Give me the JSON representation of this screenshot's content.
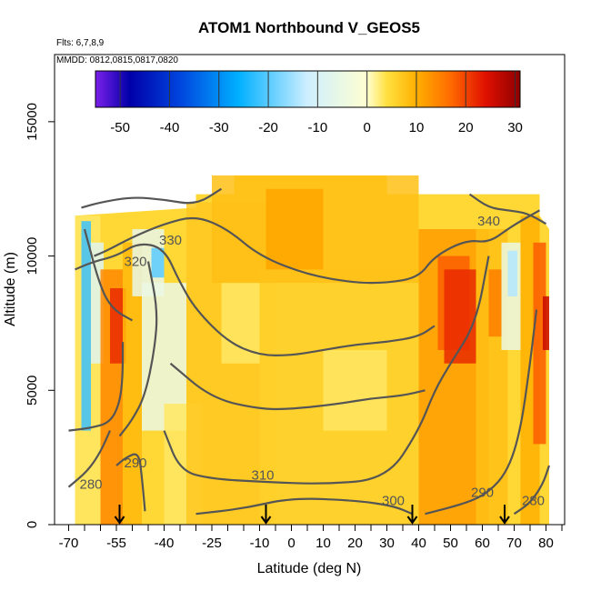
{
  "chart_data": {
    "type": "heatmap",
    "title": "ATOM1 Northbound V_GEOS5",
    "flights_note": "Flts: 6,7,8,9",
    "dates_note": "MMDD: 0812,0815,0817,0820",
    "xlabel": "Latitude (deg N)",
    "ylabel": "Altitude (m)",
    "xlim": [
      -70,
      85
    ],
    "ylim": [
      0,
      17500
    ],
    "x_ticks": [
      {
        "value": -70,
        "label": "-70"
      },
      {
        "value": -55,
        "label": "-55"
      },
      {
        "value": -40,
        "label": "-40"
      },
      {
        "value": -25,
        "label": "-25"
      },
      {
        "value": -10,
        "label": "-10"
      },
      {
        "value": 0,
        "label": "0"
      },
      {
        "value": 10,
        "label": "10"
      },
      {
        "value": 20,
        "label": "20"
      },
      {
        "value": 30,
        "label": "30"
      },
      {
        "value": 40,
        "label": "40"
      },
      {
        "value": 50,
        "label": "50"
      },
      {
        "value": 60,
        "label": "60"
      },
      {
        "value": 70,
        "label": "70"
      },
      {
        "value": 80,
        "label": "80"
      }
    ],
    "x_minor_ticks": [
      -65,
      -60,
      -50,
      -45,
      -35,
      -30,
      -20,
      -15,
      -5,
      5,
      15,
      25,
      35,
      45,
      55,
      65,
      75,
      85
    ],
    "y_ticks": [
      {
        "value": 0,
        "label": "0"
      },
      {
        "value": 5000,
        "label": "5000"
      },
      {
        "value": 10000,
        "label": "10000"
      },
      {
        "value": 15000,
        "label": "15000"
      }
    ],
    "colorbar": {
      "min": -55,
      "max": 31,
      "ticks": [
        -50,
        -40,
        -30,
        -20,
        -10,
        0,
        10,
        20,
        30
      ],
      "tick_labels": [
        "-50",
        "-40",
        "-30",
        "-20",
        "-10",
        "0",
        "10",
        "20",
        "30"
      ],
      "colormap": [
        "#7b1fe8",
        "#0000a8",
        "#0044dd",
        "#00b0ff",
        "#cfefff",
        "#ffffd0",
        "#ffe040",
        "#ffb000",
        "#ff6a00",
        "#e01000",
        "#8e0000"
      ],
      "colormap_stops": [
        -55,
        -48,
        -38,
        -26,
        -12,
        0,
        4,
        10,
        17,
        24,
        31
      ]
    },
    "field_regions": [
      {
        "lat": [
          -68,
          -60
        ],
        "alt": [
          0,
          11500
        ],
        "value": 3
      },
      {
        "lat": [
          -66,
          -63
        ],
        "alt": [
          3500,
          11300
        ],
        "value": -22
      },
      {
        "lat": [
          -63,
          -59
        ],
        "alt": [
          6000,
          10500
        ],
        "value": -8
      },
      {
        "lat": [
          -60,
          -53
        ],
        "alt": [
          0,
          9500
        ],
        "value": 14
      },
      {
        "lat": [
          -57,
          -52
        ],
        "alt": [
          6000,
          8800
        ],
        "value": 22
      },
      {
        "lat": [
          -53,
          -47
        ],
        "alt": [
          0,
          10500
        ],
        "value": 9
      },
      {
        "lat": [
          -50,
          -40
        ],
        "alt": [
          8500,
          11000
        ],
        "value": -6
      },
      {
        "lat": [
          -44,
          -40
        ],
        "alt": [
          9200,
          10300
        ],
        "value": -20
      },
      {
        "lat": [
          -47,
          -33
        ],
        "alt": [
          3500,
          9000
        ],
        "value": -5
      },
      {
        "lat": [
          -40,
          -28
        ],
        "alt": [
          0,
          4500
        ],
        "value": 3
      },
      {
        "lat": [
          -33,
          -5
        ],
        "alt": [
          0,
          12000
        ],
        "value": 7
      },
      {
        "lat": [
          -22,
          -10
        ],
        "alt": [
          6000,
          9000
        ],
        "value": 3
      },
      {
        "lat": [
          -10,
          40
        ],
        "alt": [
          0,
          9500
        ],
        "value": 6
      },
      {
        "lat": [
          10,
          30
        ],
        "alt": [
          3500,
          6500
        ],
        "value": 3
      },
      {
        "lat": [
          -25,
          40
        ],
        "alt": [
          9000,
          13000
        ],
        "value": 8
      },
      {
        "lat": [
          -8,
          10
        ],
        "alt": [
          9500,
          12500
        ],
        "value": 11
      },
      {
        "lat": [
          40,
          62
        ],
        "alt": [
          0,
          11000
        ],
        "value": 12
      },
      {
        "lat": [
          46,
          56
        ],
        "alt": [
          6500,
          10000
        ],
        "value": 18
      },
      {
        "lat": [
          48,
          58
        ],
        "alt": [
          6000,
          9500
        ],
        "value": 22
      },
      {
        "lat": [
          58,
          68
        ],
        "alt": [
          0,
          11000
        ],
        "value": 8
      },
      {
        "lat": [
          62,
          66
        ],
        "alt": [
          7000,
          9500
        ],
        "value": 15
      },
      {
        "lat": [
          66,
          72
        ],
        "alt": [
          6500,
          10500
        ],
        "value": -5
      },
      {
        "lat": [
          68,
          71
        ],
        "alt": [
          8500,
          10200
        ],
        "value": -14
      },
      {
        "lat": [
          72,
          78
        ],
        "alt": [
          0,
          11500
        ],
        "value": 10
      },
      {
        "lat": [
          76,
          80
        ],
        "alt": [
          3000,
          10500
        ],
        "value": 18
      },
      {
        "lat": [
          79,
          81
        ],
        "alt": [
          6500,
          8500
        ],
        "value": 26
      }
    ],
    "contours": [
      {
        "level": 280,
        "points": [
          [
            -70,
            3500
          ],
          [
            -63,
            3600
          ],
          [
            -57,
            3800
          ],
          [
            -54,
            4500
          ],
          [
            -53,
            5500
          ],
          [
            -53,
            6800
          ]
        ]
      },
      {
        "level": 280,
        "points": [
          [
            -70,
            1400
          ],
          [
            -64,
            2000
          ],
          [
            -60,
            2700
          ],
          [
            -57,
            3500
          ]
        ]
      },
      {
        "level": 290,
        "points": [
          [
            -55,
            2200
          ],
          [
            -52,
            2500
          ],
          [
            -48,
            2700
          ],
          [
            -47,
            1800
          ],
          [
            -46,
            500
          ]
        ]
      },
      {
        "level": 290,
        "points": [
          [
            -54,
            3300
          ],
          [
            -50,
            3900
          ],
          [
            -46,
            4800
          ],
          [
            -43,
            6500
          ],
          [
            -42,
            8000
          ],
          [
            -45,
            9800
          ]
        ]
      },
      {
        "level": 310,
        "points": [
          [
            -40,
            3500
          ],
          [
            -35,
            2000
          ],
          [
            -25,
            1700
          ],
          [
            -10,
            1600
          ],
          [
            10,
            1500
          ],
          [
            30,
            1700
          ],
          [
            40,
            3500
          ],
          [
            45,
            5000
          ],
          [
            50,
            6000
          ],
          [
            58,
            7500
          ],
          [
            62,
            10000
          ]
        ]
      },
      {
        "level": 310,
        "points": [
          [
            -65,
            11000
          ],
          [
            -60,
            8800
          ],
          [
            -56,
            8000
          ],
          [
            -50,
            7600
          ]
        ]
      },
      {
        "level": 300,
        "points": [
          [
            -30,
            400
          ],
          [
            -15,
            600
          ],
          [
            0,
            1000
          ],
          [
            20,
            900
          ],
          [
            32,
            700
          ],
          [
            38,
            400
          ]
        ]
      },
      {
        "level": 290,
        "points": [
          [
            42,
            400
          ],
          [
            55,
            800
          ],
          [
            62,
            1200
          ],
          [
            68,
            2000
          ],
          [
            72,
            3500
          ],
          [
            75,
            6000
          ],
          [
            77,
            8000
          ]
        ]
      },
      {
        "level": 280,
        "points": [
          [
            70,
            400
          ],
          [
            75,
            800
          ],
          [
            79,
            1500
          ],
          [
            81,
            2200
          ]
        ]
      },
      {
        "level": 330,
        "points": [
          [
            -62,
            10000
          ],
          [
            -58,
            10200
          ],
          [
            -50,
            10700
          ],
          [
            -40,
            11200
          ],
          [
            -30,
            11500
          ],
          [
            -20,
            11000
          ],
          [
            -10,
            10000
          ],
          [
            5,
            9300
          ],
          [
            20,
            9000
          ],
          [
            30,
            9000
          ],
          [
            40,
            9200
          ],
          [
            45,
            10000
          ],
          [
            55,
            10600
          ],
          [
            62,
            10500
          ],
          [
            68,
            11000
          ],
          [
            72,
            11300
          ],
          [
            78,
            11700
          ]
        ]
      },
      {
        "level": 320,
        "points": [
          [
            -68,
            9500
          ],
          [
            -62,
            9800
          ],
          [
            -55,
            10000
          ],
          [
            -48,
            10500
          ],
          [
            -40,
            10300
          ],
          [
            -35,
            9000
          ],
          [
            -30,
            8000
          ],
          [
            -20,
            6800
          ],
          [
            -10,
            6300
          ],
          [
            0,
            6300
          ],
          [
            10,
            6500
          ],
          [
            20,
            6700
          ],
          [
            30,
            6800
          ],
          [
            40,
            7000
          ],
          [
            45,
            7400
          ]
        ]
      },
      {
        "level": 340,
        "points": [
          [
            -66,
            11800
          ],
          [
            -60,
            12000
          ],
          [
            -50,
            12200
          ],
          [
            -40,
            12100
          ],
          [
            -30,
            11900
          ],
          [
            -22,
            12500
          ]
        ]
      },
      {
        "level": 340,
        "points": [
          [
            56,
            12300
          ],
          [
            62,
            11800
          ],
          [
            68,
            11700
          ],
          [
            74,
            11600
          ],
          [
            80,
            11200
          ]
        ]
      },
      {
        "level": 315,
        "points": [
          [
            -38,
            6000
          ],
          [
            -25,
            4700
          ],
          [
            -10,
            4300
          ],
          [
            0,
            4300
          ],
          [
            15,
            4500
          ],
          [
            25,
            4700
          ],
          [
            35,
            4800
          ],
          [
            42,
            5000
          ]
        ]
      }
    ],
    "contour_labels": [
      {
        "text": "330",
        "lat": -38,
        "alt": 10600
      },
      {
        "text": "320",
        "lat": -49,
        "alt": 9800
      },
      {
        "text": "340",
        "lat": 62,
        "alt": 11300
      },
      {
        "text": "310",
        "lat": -9,
        "alt": 1850
      },
      {
        "text": "300",
        "lat": 32,
        "alt": 900
      },
      {
        "text": "290",
        "lat": -49,
        "alt": 2300
      },
      {
        "text": "290",
        "lat": 60,
        "alt": 1200
      },
      {
        "text": "280",
        "lat": -63,
        "alt": 1500
      },
      {
        "text": "280",
        "lat": 76,
        "alt": 900
      }
    ],
    "flight_markers_lat": [
      -54,
      -8,
      38,
      67
    ]
  }
}
